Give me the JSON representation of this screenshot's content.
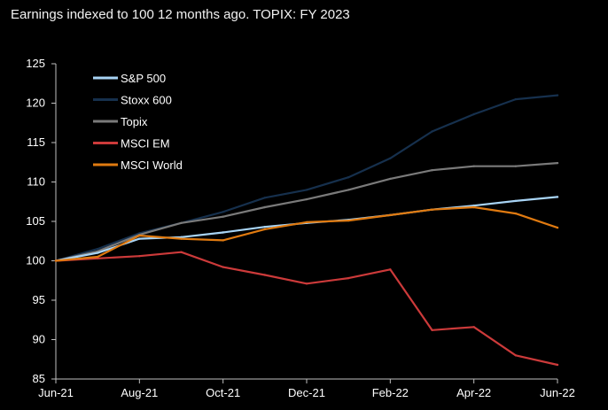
{
  "chart_data": {
    "type": "line",
    "title": "Earnings indexed to 100 12 months ago. TOPIX: FY 2023",
    "xlabel": "",
    "ylabel": "",
    "ylim": [
      85,
      125
    ],
    "yticks": [
      85,
      90,
      95,
      100,
      105,
      110,
      115,
      120,
      125
    ],
    "xtick_labels": [
      "Jun-21",
      "Aug-21",
      "Oct-21",
      "Dec-21",
      "Feb-22",
      "Apr-22",
      "Jun-22"
    ],
    "grid": false,
    "legend_position": "top-left",
    "x": [
      "Jun-21",
      "Jul-21",
      "Aug-21",
      "Sep-21",
      "Oct-21",
      "Nov-21",
      "Dec-21",
      "Jan-22",
      "Feb-22",
      "Mar-22",
      "Apr-22",
      "May-22",
      "Jun-22"
    ],
    "series": [
      {
        "name": "S&P 500",
        "color": "#a8d4f5",
        "values": [
          100,
          101.0,
          102.8,
          103.0,
          103.6,
          104.3,
          104.8,
          105.2,
          105.8,
          106.5,
          107.0,
          107.6,
          108.1
        ]
      },
      {
        "name": "Stoxx 600",
        "color": "#16304d",
        "values": [
          100,
          101.5,
          103.5,
          104.8,
          106.2,
          108.0,
          109.0,
          110.6,
          113.0,
          116.4,
          118.6,
          120.5,
          121.0
        ]
      },
      {
        "name": "Topix",
        "color": "#7a7a7a",
        "values": [
          100,
          101.2,
          103.3,
          104.8,
          105.6,
          106.8,
          107.8,
          109.0,
          110.4,
          111.5,
          112.0,
          112.0,
          112.4
        ]
      },
      {
        "name": "MSCI EM",
        "color": "#cc3a3a",
        "values": [
          100,
          100.3,
          100.6,
          101.1,
          99.2,
          98.2,
          97.1,
          97.8,
          98.9,
          91.2,
          91.6,
          88.0,
          86.8
        ]
      },
      {
        "name": "MSCI World",
        "color": "#e07a10",
        "values": [
          100,
          100.5,
          103.2,
          102.8,
          102.6,
          104.0,
          104.9,
          105.1,
          105.8,
          106.5,
          106.8,
          106.0,
          104.2
        ]
      }
    ]
  }
}
